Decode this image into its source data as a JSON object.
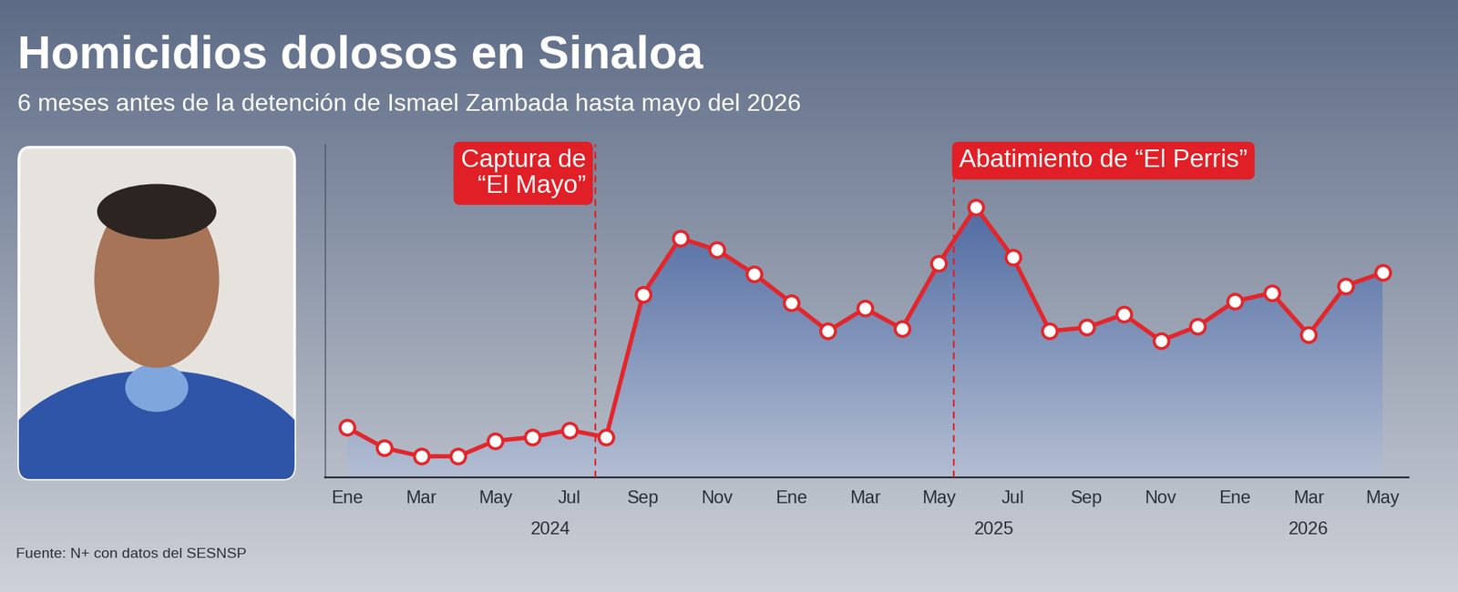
{
  "chart_data": {
    "type": "line",
    "title": "Homicidios dolosos en Sinaloa",
    "subtitle": "6 meses antes de la detención de Ismael Zambada hasta mayo del 2026",
    "source": "Fuente: N+ con datos del SESNSP",
    "categories": [
      "Ene",
      null,
      "Mar",
      null,
      "May",
      null,
      "Jul",
      null,
      "Sep",
      null,
      "Nov",
      null,
      "Ene",
      null,
      "Mar",
      null,
      "May",
      null,
      "Jul",
      null,
      "Sep",
      null,
      "Nov",
      null,
      "Ene",
      null,
      "Mar",
      null,
      "May"
    ],
    "years": [
      {
        "label": "2024",
        "start": 0,
        "end": 11
      },
      {
        "label": "2025",
        "start": 12,
        "end": 23
      },
      {
        "label": "2026",
        "start": 24,
        "end": 28
      }
    ],
    "values": [
      42,
      25,
      18,
      18,
      31,
      34,
      40,
      34,
      154,
      201,
      191,
      171,
      147,
      123,
      142,
      125,
      180,
      227,
      185,
      123,
      126,
      137,
      115,
      127,
      148,
      155,
      120,
      161,
      172
    ],
    "color": "#e3262b",
    "marker": "o",
    "line_style": "solid",
    "ylim": [
      0,
      280
    ],
    "yticks": [],
    "tick_labels": "x",
    "grid": false,
    "annotations": [
      {
        "text": "Captura de\n“El Mayo”",
        "x": 6.7,
        "color": "#e01f26"
      },
      {
        "text": "Abatimiento de “El Perris”",
        "x": 16.4,
        "color": "#e01f26"
      }
    ]
  }
}
